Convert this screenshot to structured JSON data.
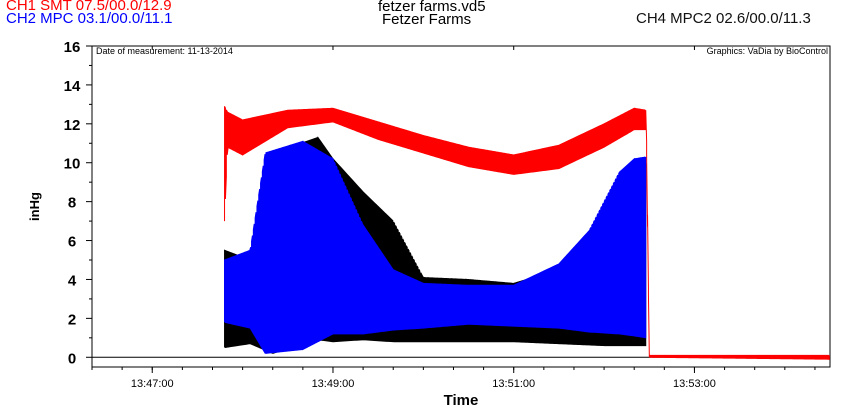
{
  "header": {
    "ch1": "CH1 SMT 07.5/00.0/12.9",
    "ch2": "CH2 MPC 03.1/00.0/11.1",
    "ch4": "CH4 MPC2 02.6/00.0/11.3",
    "title_line1": "fetzer farms.vd5",
    "title_line2": "Fetzer Farms"
  },
  "plot_notes": {
    "left": "Date of measurement: 11-13-2014",
    "right": "Graphics: VaDia by BioControl"
  },
  "colors": {
    "ch1": "#ff0000",
    "ch2": "#0000ff",
    "ch4": "#000000",
    "axis": "#000000"
  },
  "chart_data": {
    "type": "line",
    "title": "fetzer farms.vd5",
    "subtitle": "Fetzer Farms",
    "xlabel": "Time",
    "ylabel": "inHg",
    "x_ticks": [
      "13:47:00",
      "13:49:00",
      "13:51:00",
      "13:53:00"
    ],
    "y_ticks": [
      0,
      2,
      4,
      6,
      8,
      10,
      12,
      14,
      16
    ],
    "ylim": [
      -0.5,
      16
    ],
    "xlim": [
      "13:46:20",
      "13:54:30"
    ],
    "grid": false,
    "legend": "top",
    "series": [
      {
        "name": "CH1 SMT 07.5/00.0/12.9",
        "color": "#ff0000",
        "kind": "band",
        "x": [
          "13:47:48",
          "13:47:50",
          "13:48:00",
          "13:48:30",
          "13:49:00",
          "13:49:30",
          "13:50:00",
          "13:50:30",
          "13:51:00",
          "13:51:30",
          "13:52:00",
          "13:52:20",
          "13:52:28",
          "13:52:30",
          "13:54:30"
        ],
        "low": [
          7.0,
          10.8,
          10.4,
          11.8,
          12.1,
          11.2,
          10.5,
          9.8,
          9.4,
          9.7,
          10.8,
          11.7,
          11.7,
          0.0,
          -0.1
        ],
        "high": [
          12.9,
          12.6,
          12.2,
          12.7,
          12.8,
          12.1,
          11.4,
          10.8,
          10.4,
          10.9,
          12.0,
          12.8,
          12.7,
          0.1,
          0.1
        ]
      },
      {
        "name": "CH4 MPC2 02.6/00.0/11.3",
        "color": "#000000",
        "kind": "band",
        "x": [
          "13:47:48",
          "13:48:05",
          "13:48:20",
          "13:48:50",
          "13:49:00",
          "13:49:20",
          "13:49:40",
          "13:50:00",
          "13:50:30",
          "13:51:00",
          "13:51:30",
          "13:52:00",
          "13:52:20",
          "13:52:28"
        ],
        "low": [
          0.5,
          0.7,
          0.2,
          0.9,
          0.8,
          0.9,
          0.8,
          0.8,
          0.8,
          0.8,
          0.7,
          0.6,
          0.6,
          0.6
        ],
        "high": [
          5.5,
          5.0,
          10.5,
          11.3,
          10.2,
          8.5,
          7.0,
          4.1,
          4.0,
          3.8,
          4.5,
          6.5,
          9.0,
          10.0
        ]
      },
      {
        "name": "CH2 MPC 03.1/00.0/11.1",
        "color": "#0000ff",
        "kind": "band",
        "x": [
          "13:47:48",
          "13:48:05",
          "13:48:15",
          "13:48:40",
          "13:49:00",
          "13:49:20",
          "13:49:40",
          "13:50:00",
          "13:50:30",
          "13:51:00",
          "13:51:30",
          "13:51:50",
          "13:52:10",
          "13:52:20",
          "13:52:28"
        ],
        "low": [
          1.8,
          1.5,
          0.2,
          0.4,
          1.2,
          1.2,
          1.4,
          1.5,
          1.7,
          1.6,
          1.5,
          1.3,
          1.2,
          1.1,
          1.0
        ],
        "high": [
          5.0,
          5.5,
          10.5,
          11.1,
          10.2,
          6.8,
          4.5,
          3.8,
          3.7,
          3.7,
          4.8,
          6.5,
          9.5,
          10.2,
          10.3
        ]
      }
    ]
  }
}
